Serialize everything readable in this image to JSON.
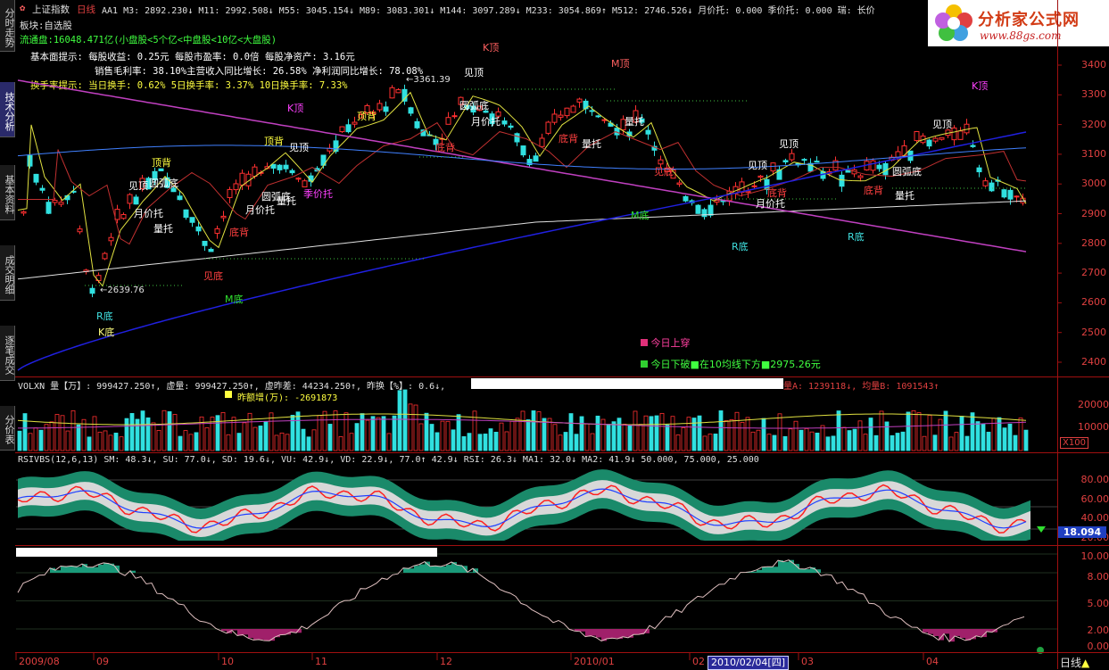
{
  "sidebar": {
    "tabs": [
      {
        "label": "分时走势",
        "active": false
      },
      {
        "label": "技术分析",
        "active": true
      },
      {
        "label": "基本资料",
        "active": false
      },
      {
        "label": "成交明细",
        "active": false
      },
      {
        "label": "逐笔成交",
        "active": false
      },
      {
        "label": "分价表",
        "active": false
      }
    ]
  },
  "header": {
    "index_name": "上证指数",
    "period": "日线",
    "indicators": "AA1  M3: 2892.230↓  M11: 2992.508↓  M55: 3045.154↓  M89: 3083.301↓  M144: 3097.289↓  M233: 3054.869↑  M512: 2746.526↓  月价托: 0.000  季价托: 0.000  瑞: 长价",
    "block": "板块:自选股",
    "float_cap": "流通盘:16048.471亿(小盘股<5个亿<中盘股<10亿<大盘股)",
    "fundamentals_1": "基本面提示:  每股收益: 0.25元 每股市盈率: 0.0倍      每股净资产: 3.16元",
    "fundamentals_2": "销售毛利率: 38.10%主营收入同比增长: 26.58% 净利润同比增长: 78.08%",
    "turnover": "换手率提示:  当日换手: 0.62%    5日换手率: 3.37%      10日换手率: 7.33%"
  },
  "logo": {
    "title": "分析家公式网",
    "url": "www.88gs.com"
  },
  "main_chart": {
    "price_axis": [
      "3400",
      "3300",
      "3200",
      "3100",
      "3000",
      "2900",
      "2800",
      "2700",
      "2600",
      "2500",
      "2400"
    ],
    "low_label": "2639.76",
    "high_label": "3361.39",
    "legend": [
      {
        "text": "今日上穿",
        "color": "#e0307a"
      },
      {
        "text": "今日下破■在10均线下方■2975.26元",
        "color": "#30d030"
      }
    ],
    "annotations": [
      {
        "text": "K顶",
        "color": "#ff6060"
      },
      {
        "text": "M顶",
        "color": "#ff6060"
      },
      {
        "text": "K顶",
        "color": "#ff40ff"
      },
      {
        "text": "K顶",
        "color": "#ff40ff"
      },
      {
        "text": "见顶",
        "color": "#ffffff"
      },
      {
        "text": "顶背",
        "color": "#ffff40"
      },
      {
        "text": "顶背",
        "color": "#ffff40"
      },
      {
        "text": "顶背",
        "color": "#ffff40"
      },
      {
        "text": "见顶",
        "color": "#ffffff"
      },
      {
        "text": "见顶",
        "color": "#ffffff"
      },
      {
        "text": "见顶",
        "color": "#ffffff"
      },
      {
        "text": "见顶",
        "color": "#ffffff"
      },
      {
        "text": "见顶",
        "color": "#ffffff"
      },
      {
        "text": "圆弧底",
        "color": "#ffffff"
      },
      {
        "text": "圆弧底",
        "color": "#ffffff"
      },
      {
        "text": "圆弧底",
        "color": "#ffffff"
      },
      {
        "text": "圆弧底",
        "color": "#ffffff"
      },
      {
        "text": "月价托",
        "color": "#ffffff"
      },
      {
        "text": "月价托",
        "color": "#ffffff"
      },
      {
        "text": "月价托",
        "color": "#ffffff"
      },
      {
        "text": "月价托",
        "color": "#ffffff"
      },
      {
        "text": "季价托",
        "color": "#ff40ff"
      },
      {
        "text": "量托",
        "color": "#ffffff"
      },
      {
        "text": "量托",
        "color": "#ffffff"
      },
      {
        "text": "量托",
        "color": "#ffffff"
      },
      {
        "text": "量托",
        "color": "#ffffff"
      },
      {
        "text": "量托",
        "color": "#ffffff"
      },
      {
        "text": "底背",
        "color": "#ff4040"
      },
      {
        "text": "底背",
        "color": "#ff4040"
      },
      {
        "text": "底背",
        "color": "#ff4040"
      },
      {
        "text": "底背",
        "color": "#ff4040"
      },
      {
        "text": "底背",
        "color": "#ff4040"
      },
      {
        "text": "见底",
        "color": "#ff4040"
      },
      {
        "text": "见底",
        "color": "#ff4040"
      },
      {
        "text": "M底",
        "color": "#30e030"
      },
      {
        "text": "M底",
        "color": "#30e030"
      },
      {
        "text": "R底",
        "color": "#40e0e0"
      },
      {
        "text": "R底",
        "color": "#40e0e0"
      },
      {
        "text": "R底",
        "color": "#40e0e0"
      },
      {
        "text": "K底",
        "color": "#ffff80"
      }
    ]
  },
  "volume_panel": {
    "header": "VOLXN 量【万】: 999427.250↑, 虚量: 999427.250↑, 虚昨差: 44234.250↑, 昨换【%】: 0.6↓,",
    "header_right": "量A: 1239118↓, 均量B: 1091543↑",
    "sub": "昨额增(万): -2691873",
    "axis": [
      "20000",
      "10000"
    ],
    "unit": "X100"
  },
  "rsi_panel": {
    "header": "RSIVBS(12,6,13) SM: 48.3↓, SU: 77.0↓, SD: 19.6↓, VU: 42.9↓, VD: 22.9↓, 77.0↑ 42.9↓ RSI: 26.3↓ MA1: 32.0↓ MA2: 41.9↓ 50.000, 75.000, 25.000",
    "axis": [
      "80.00",
      "60.00",
      "40.00",
      "20.00"
    ],
    "current": "18.094"
  },
  "bottom_panel": {
    "axis": [
      "10.00",
      "8.00",
      "5.00",
      "2.00",
      "0.00"
    ]
  },
  "time_axis": {
    "labels": [
      "2009/08",
      "09",
      "10",
      "11",
      "12",
      "2010/01",
      "02",
      "03",
      "04"
    ],
    "cursor_date": "2010/02/04[四]",
    "period_button": "日线"
  },
  "colors": {
    "up": "#ff3030",
    "down": "#30e0e0",
    "accent": "#e04040",
    "ma_yellow": "#e0e040",
    "ma_magenta": "#c040c0",
    "ma_blue": "#2020e0",
    "ma_white": "#e0e0e0"
  }
}
